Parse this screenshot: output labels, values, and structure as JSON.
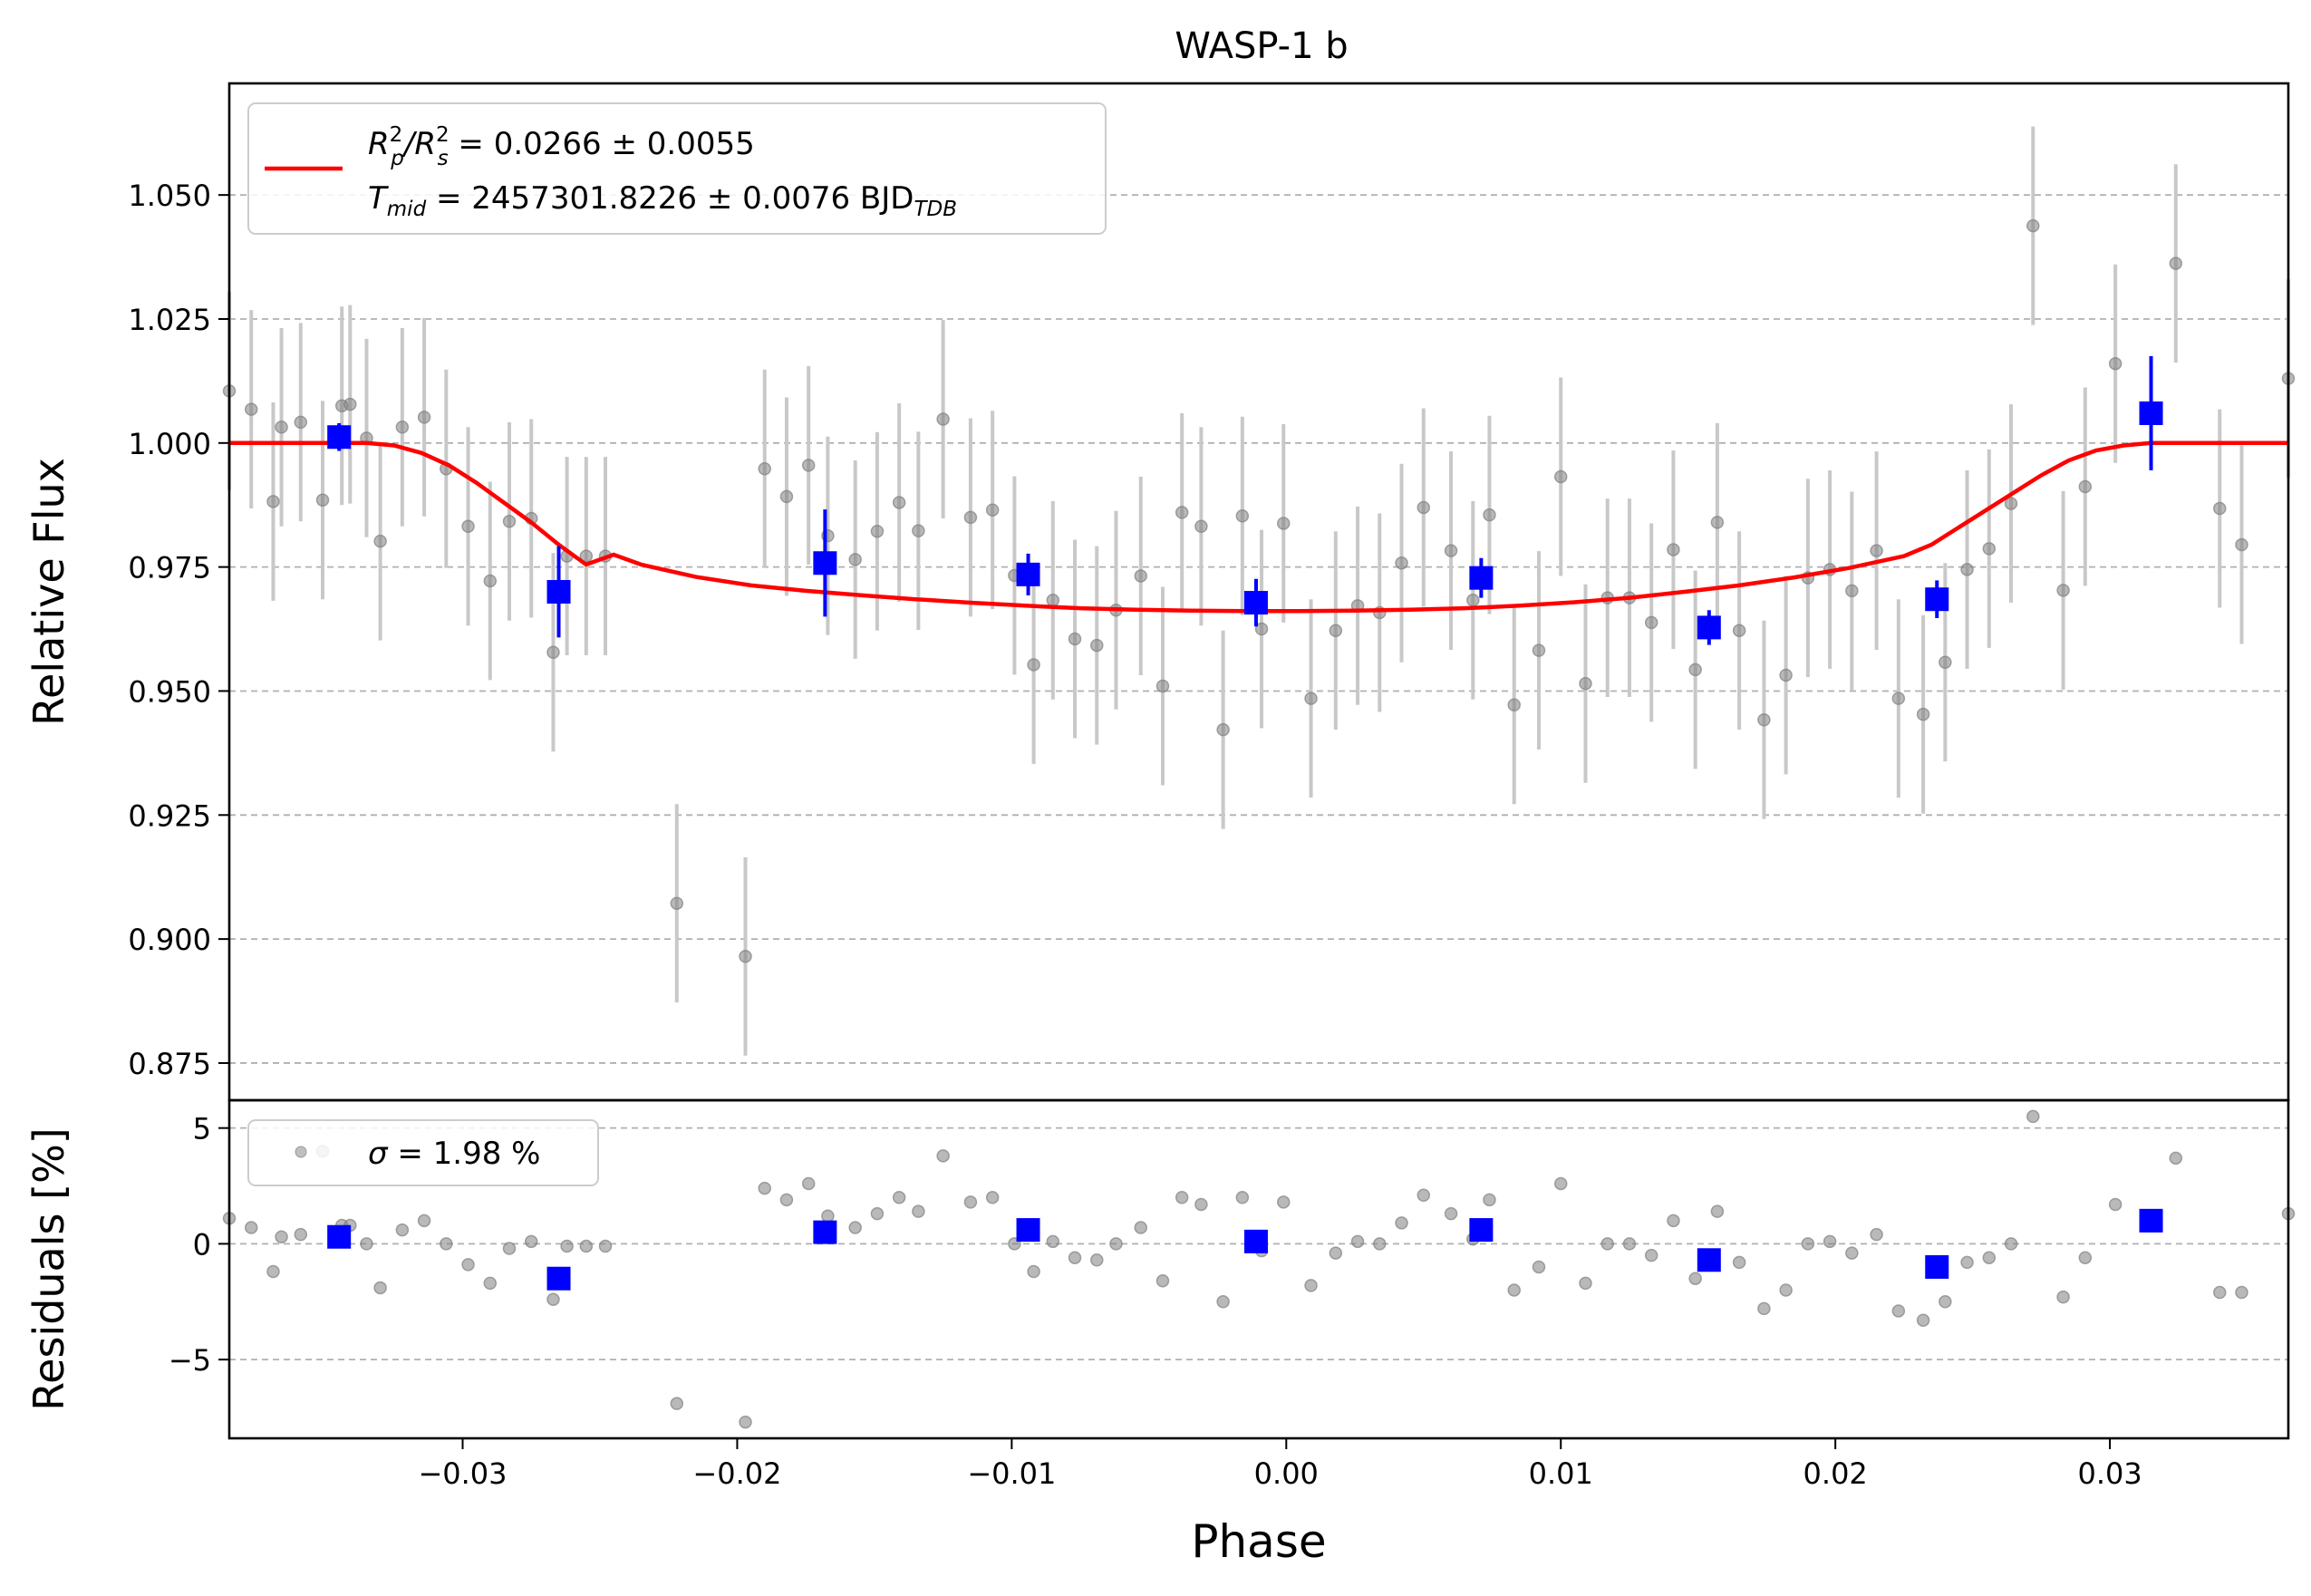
{
  "chart_data": [
    {
      "type": "scatter",
      "title": "WASP-1 b",
      "xlabel": "",
      "ylabel": "Relative Flux",
      "xlim": [
        -0.0385,
        0.0365
      ],
      "ylim": [
        0.8675,
        1.0725
      ],
      "grid": "y-dashed",
      "yticks": [
        0.875,
        0.9,
        0.925,
        0.95,
        0.975,
        1.0,
        1.025,
        1.05
      ],
      "yticklabels": [
        "0.875",
        "0.900",
        "0.925",
        "0.950",
        "0.975",
        "1.000",
        "1.025",
        "1.050"
      ],
      "legend": {
        "placement": "top-left",
        "lines": [
          {
            "math": true,
            "parts": [
              {
                "t": "R"
              },
              {
                "sup": "2",
                "sub": "p"
              },
              {
                "t": "/R"
              },
              {
                "sup": "2",
                "sub": "s"
              }
            ],
            "text": " = 0.0266 ± 0.0055"
          },
          {
            "math": true,
            "parts": [
              {
                "t": "T"
              },
              {
                "sub": "mid"
              }
            ],
            "text": " = 2457301.8226 ± 0.0076 BJD",
            "suffix_sub": "TDB"
          }
        ]
      },
      "model": {
        "color": "#ff0000",
        "x": [
          -0.0385,
          -0.0335,
          -0.0325,
          -0.0315,
          -0.0305,
          -0.0295,
          -0.0285,
          -0.0275,
          -0.0265,
          -0.0255,
          -0.0245,
          -0.0235,
          -0.0215,
          -0.0195,
          -0.0175,
          -0.0155,
          -0.0135,
          -0.0115,
          -0.0095,
          -0.0075,
          -0.0055,
          -0.0035,
          -0.0015,
          0.0005,
          0.0025,
          0.0045,
          0.0065,
          0.0085,
          0.0105,
          0.0125,
          0.0145,
          0.0165,
          0.0185,
          0.0205,
          0.0225,
          0.0235,
          0.0245,
          0.0255,
          0.0265,
          0.0275,
          0.0285,
          0.0295,
          0.0305,
          0.0315,
          0.0325,
          0.0335,
          0.0365
        ],
        "y": [
          1.0,
          1.0,
          0.9995,
          0.998,
          0.9955,
          0.992,
          0.988,
          0.984,
          0.9795,
          0.9755,
          0.9775,
          0.9755,
          0.973,
          0.9713,
          0.9702,
          0.9693,
          0.9685,
          0.9678,
          0.9672,
          0.9667,
          0.9664,
          0.9662,
          0.9661,
          0.9661,
          0.9662,
          0.9664,
          0.9667,
          0.9672,
          0.9679,
          0.9688,
          0.97,
          0.9713,
          0.9729,
          0.9748,
          0.9772,
          0.9795,
          0.983,
          0.9865,
          0.99,
          0.9935,
          0.9965,
          0.9985,
          0.9995,
          1.0,
          1.0,
          1.0,
          1.0
        ]
      },
      "raw": {
        "color": "#808080",
        "x": [
          -0.0385,
          -0.0377,
          -0.0369,
          -0.0366,
          -0.0359,
          -0.0351,
          -0.0344,
          -0.0341,
          -0.0335,
          -0.033,
          -0.0322,
          -0.0314,
          -0.0306,
          -0.0298,
          -0.029,
          -0.0283,
          -0.0275,
          -0.0267,
          -0.0262,
          -0.0255,
          -0.0248,
          -0.0222,
          -0.0197,
          -0.019,
          -0.0182,
          -0.0174,
          -0.0167,
          -0.0157,
          -0.0149,
          -0.0141,
          -0.0134,
          -0.0125,
          -0.0115,
          -0.0107,
          -0.0099,
          -0.0092,
          -0.0085,
          -0.0077,
          -0.0069,
          -0.0062,
          -0.0053,
          -0.0045,
          -0.0038,
          -0.0031,
          -0.0023,
          -0.0016,
          -0.0009,
          -0.0001,
          0.0009,
          0.0018,
          0.0026,
          0.0034,
          0.0042,
          0.005,
          0.006,
          0.0068,
          0.0074,
          0.0083,
          0.0092,
          0.01,
          0.0109,
          0.0117,
          0.0125,
          0.0133,
          0.0141,
          0.0149,
          0.0157,
          0.0165,
          0.0174,
          0.0182,
          0.019,
          0.0198,
          0.0206,
          0.0215,
          0.0223,
          0.0232,
          0.024,
          0.0248,
          0.0256,
          0.0264,
          0.0272,
          0.0283,
          0.0291,
          0.0302,
          0.0324,
          0.0348,
          0.034,
          0.0365
        ],
        "y": [
          1.0105,
          1.0068,
          0.9882,
          1.0032,
          1.0042,
          0.9885,
          1.0075,
          1.0078,
          1.001,
          0.9802,
          1.0032,
          1.0052,
          0.9948,
          0.9832,
          0.9722,
          0.9842,
          0.9848,
          0.9578,
          0.9772,
          0.9772,
          0.9772,
          0.9072,
          0.8965,
          0.9948,
          0.9892,
          0.9955,
          0.9813,
          0.9765,
          0.9822,
          0.988,
          0.9823,
          1.0048,
          0.985,
          0.9865,
          0.9733,
          0.9553,
          0.9683,
          0.9605,
          0.9592,
          0.9663,
          0.9732,
          0.951,
          0.986,
          0.9832,
          0.9422,
          0.9853,
          0.9625,
          0.9838,
          0.9485,
          0.9622,
          0.9672,
          0.9658,
          0.9758,
          0.987,
          0.9783,
          0.9683,
          0.9855,
          0.9472,
          0.9582,
          0.9932,
          0.9515,
          0.9688,
          0.9688,
          0.9638,
          0.9785,
          0.9543,
          0.984,
          0.9622,
          0.9442,
          0.9532,
          0.9728,
          0.9745,
          0.9702,
          0.9783,
          0.9485,
          0.9453,
          0.9558,
          0.9745,
          0.9787,
          0.9878,
          1.0438,
          0.9703,
          0.9912,
          1.016,
          1.0362,
          0.9795,
          0.9868,
          1.013
        ],
        "err": 0.02
      },
      "binned": {
        "color": "#0000ff",
        "x": [
          -0.0345,
          -0.0265,
          -0.0168,
          -0.0094,
          -0.0011,
          0.0071,
          0.0154,
          0.0237,
          0.0315
        ],
        "y": [
          1.0012,
          0.97,
          0.9758,
          0.9735,
          0.9678,
          0.9728,
          0.9628,
          0.9685,
          1.006
        ],
        "err": [
          0.0028,
          0.0092,
          0.0108,
          0.0042,
          0.0048,
          0.004,
          0.0035,
          0.0038,
          0.0115
        ]
      }
    },
    {
      "type": "scatter",
      "title": "",
      "xlabel": "Phase",
      "ylabel": "Residuals [%]",
      "xlim": [
        -0.0385,
        0.0365
      ],
      "ylim": [
        -8.4,
        6.2
      ],
      "grid": "y-dashed",
      "xticks": [
        -0.03,
        -0.02,
        -0.01,
        0.0,
        0.01,
        0.02,
        0.03
      ],
      "xticklabels": [
        "−0.03",
        "−0.02",
        "−0.01",
        "0.00",
        "0.01",
        "0.02",
        "0.03"
      ],
      "yticks": [
        -5,
        0,
        5
      ],
      "yticklabels": [
        "−5",
        "0",
        "5"
      ],
      "legend": {
        "placement": "top-left",
        "label_math": "σ",
        "label_text": " = 1.98 %"
      },
      "raw": {
        "color": "#808080",
        "x": [
          -0.0385,
          -0.0377,
          -0.0369,
          -0.0366,
          -0.0359,
          -0.0351,
          -0.0344,
          -0.0341,
          -0.0335,
          -0.033,
          -0.0322,
          -0.0314,
          -0.0306,
          -0.0298,
          -0.029,
          -0.0283,
          -0.0275,
          -0.0267,
          -0.0262,
          -0.0255,
          -0.0248,
          -0.0222,
          -0.0197,
          -0.019,
          -0.0182,
          -0.0174,
          -0.0167,
          -0.0157,
          -0.0149,
          -0.0141,
          -0.0134,
          -0.0125,
          -0.0115,
          -0.0107,
          -0.0099,
          -0.0092,
          -0.0085,
          -0.0077,
          -0.0069,
          -0.0062,
          -0.0053,
          -0.0045,
          -0.0038,
          -0.0031,
          -0.0023,
          -0.0016,
          -0.0009,
          -0.0001,
          0.0009,
          0.0018,
          0.0026,
          0.0034,
          0.0042,
          0.005,
          0.006,
          0.0068,
          0.0074,
          0.0083,
          0.0092,
          0.01,
          0.0109,
          0.0117,
          0.0125,
          0.0133,
          0.0141,
          0.0149,
          0.0157,
          0.0165,
          0.0174,
          0.0182,
          0.019,
          0.0198,
          0.0206,
          0.0215,
          0.0223,
          0.0232,
          0.024,
          0.0248,
          0.0256,
          0.0264,
          0.0272,
          0.0283,
          0.0291,
          0.0302,
          0.0324,
          0.0348,
          0.034,
          0.0365
        ],
        "y": [
          1.1,
          0.7,
          -1.2,
          0.3,
          0.4,
          4.0,
          0.8,
          0.8,
          0.0,
          -1.9,
          0.6,
          1.0,
          0.0,
          -0.9,
          -1.7,
          -0.2,
          0.1,
          -2.4,
          -0.1,
          -0.1,
          -0.1,
          -6.9,
          -7.7,
          2.4,
          1.9,
          2.6,
          1.2,
          0.7,
          1.3,
          2.0,
          1.4,
          3.8,
          1.8,
          2.0,
          0.0,
          -1.2,
          0.1,
          -0.6,
          -0.7,
          0.0,
          0.7,
          -1.6,
          2.0,
          1.7,
          -2.5,
          2.0,
          -0.3,
          1.8,
          -1.8,
          -0.4,
          0.1,
          0.0,
          0.9,
          2.1,
          1.3,
          0.2,
          1.9,
          -2.0,
          -1.0,
          2.6,
          -1.7,
          0.0,
          0.0,
          -0.5,
          1.0,
          -1.5,
          1.4,
          -0.8,
          -2.8,
          -2.0,
          0.0,
          0.1,
          -0.4,
          0.4,
          -2.9,
          -3.3,
          -2.5,
          -0.8,
          -0.6,
          0.0,
          5.5,
          -2.3,
          -0.6,
          1.7,
          3.7,
          -2.1,
          -2.1,
          1.3
        ]
      },
      "binned": {
        "color": "#0000ff",
        "x": [
          -0.0345,
          -0.0265,
          -0.0168,
          -0.0094,
          -0.0011,
          0.0071,
          0.0154,
          0.0237,
          0.0315
        ],
        "y": [
          0.3,
          -1.5,
          0.5,
          0.6,
          0.1,
          0.6,
          -0.7,
          -1.0,
          1.0
        ]
      }
    }
  ]
}
